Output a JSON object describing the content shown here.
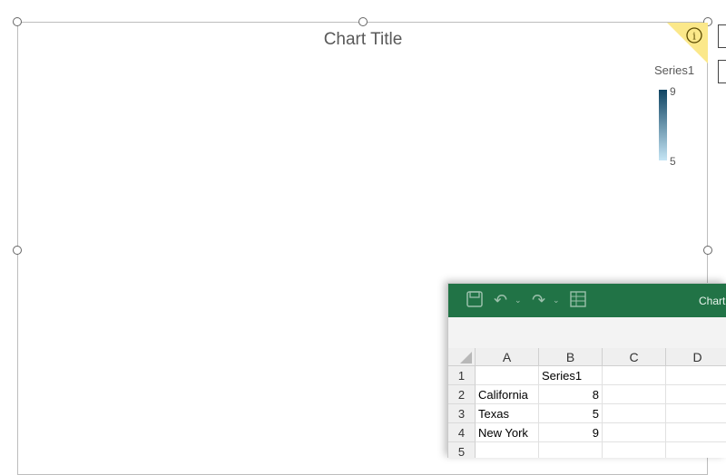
{
  "chart": {
    "title": "Chart Title",
    "legend": {
      "title": "Series1",
      "max_label": "9",
      "min_label": "5",
      "color_max": "#0f4462",
      "color_min": "#c5e5f5"
    }
  },
  "chart_data": {
    "type": "map",
    "title": "Chart Title",
    "categories": [
      "California",
      "Texas",
      "New York"
    ],
    "series": [
      {
        "name": "Series1",
        "values": [
          8,
          5,
          9
        ]
      }
    ],
    "range": [
      5,
      9
    ],
    "legend_position": "top-right",
    "colors": {
      "California": "#3b6e89",
      "Texas": "#c5e5f5",
      "New York": "#0f4462",
      "other": "#dedede"
    }
  },
  "excel": {
    "app_title": "Chart",
    "toolbar": {
      "save_icon": "save-icon",
      "undo_icon": "undo-icon",
      "redo_icon": "redo-icon",
      "table_icon": "table-icon"
    },
    "columns": [
      "A",
      "B",
      "C",
      "D"
    ],
    "rows": [
      {
        "num": "1",
        "a": "",
        "b": "Series1"
      },
      {
        "num": "2",
        "a": "California",
        "b": "8"
      },
      {
        "num": "3",
        "a": "Texas",
        "b": "5"
      },
      {
        "num": "4",
        "a": "New York",
        "b": "9"
      },
      {
        "num": "5",
        "a": "",
        "b": ""
      }
    ]
  }
}
